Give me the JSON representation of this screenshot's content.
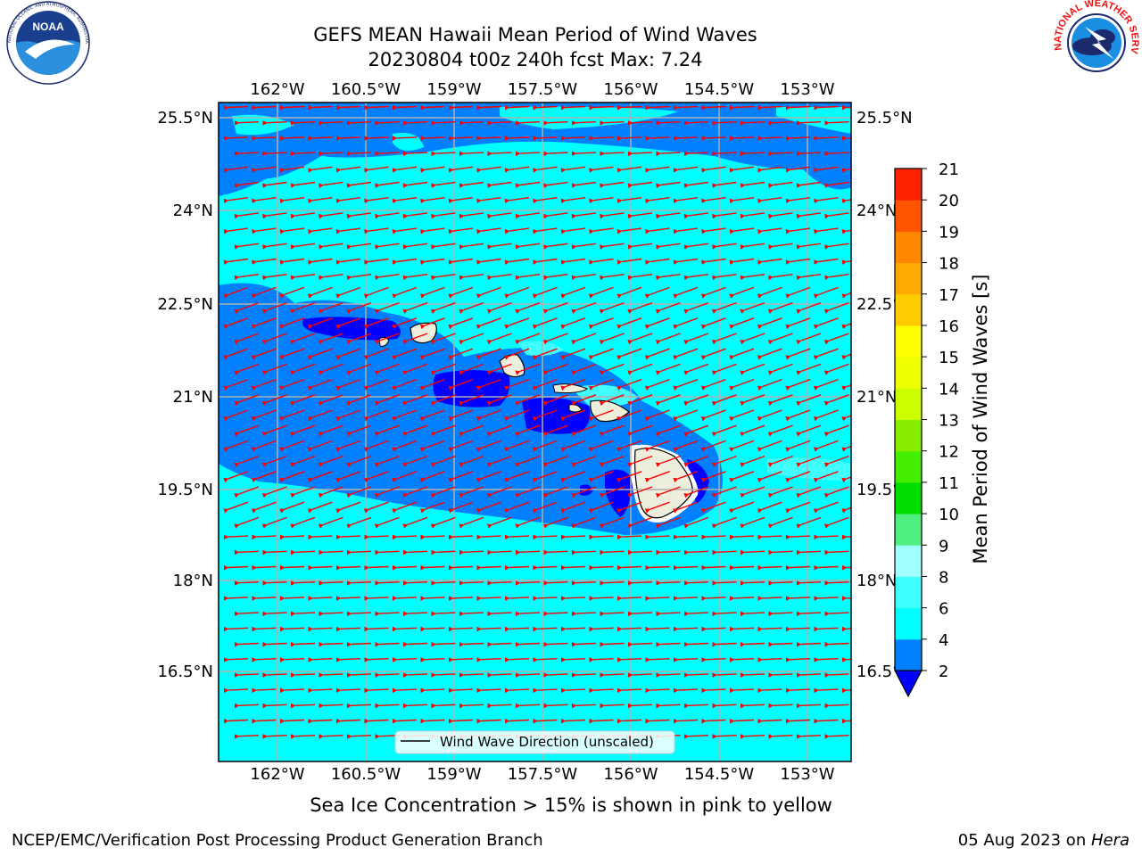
{
  "header": {
    "title_line1": "GEFS MEAN Hawaii Mean Period of Wind Waves",
    "title_line2": "20230804 t00z 240h fcst   Max: 7.24"
  },
  "logos": {
    "left": {
      "icon": "noaa-logo-icon",
      "text": "NOAA",
      "ring_text": "NATIONAL OCEANIC AND ATMOSPHERIC ADMINISTRATION · U.S. DEPARTMENT OF COMMERCE"
    },
    "right": {
      "icon": "nws-logo-icon",
      "ring_text": "NATIONAL WEATHER SERVICE"
    }
  },
  "map": {
    "lon_labels": [
      "162°W",
      "160.5°W",
      "159°W",
      "157.5°W",
      "156°W",
      "154.5°W",
      "153°W"
    ],
    "lat_labels": [
      "25.5°N",
      "24°N",
      "22.5°N",
      "21°N",
      "19.5°N",
      "18°N",
      "16.5°N"
    ],
    "legend_label": "Wind Wave Direction (unscaled)",
    "arrow_color": "#ff0000",
    "land_color": "#eeeedd"
  },
  "colorbar": {
    "label": "Mean Period of Wind Waves [s]",
    "ticks": [
      "2",
      "4",
      "6",
      "8",
      "9",
      "10",
      "11",
      "12",
      "13",
      "14",
      "15",
      "16",
      "17",
      "18",
      "19",
      "20",
      "21"
    ],
    "colors": [
      "#0080ff",
      "#00ffff",
      "#40ffff",
      "#a0ffff",
      "#50f080",
      "#00dd00",
      "#44ee00",
      "#88ee00",
      "#ccff00",
      "#eeff00",
      "#ffff00",
      "#ffcc00",
      "#ffaa00",
      "#ff8800",
      "#ff5500",
      "#ff2200"
    ],
    "under_color": "#0000ff"
  },
  "footer": {
    "note": "Sea Ice Concentration > 15% is shown in pink to yellow",
    "left": "NCEP/EMC/Verification Post Processing Product Generation Branch",
    "right_prefix": "05 Aug 2023 on ",
    "right_host": "Hera"
  }
}
